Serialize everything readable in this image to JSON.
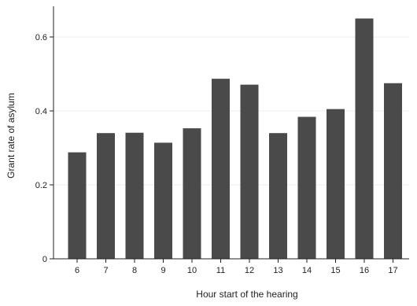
{
  "chart_data": {
    "type": "bar",
    "categories": [
      "6",
      "7",
      "8",
      "9",
      "10",
      "11",
      "12",
      "13",
      "14",
      "15",
      "16",
      "17"
    ],
    "values": [
      0.288,
      0.34,
      0.341,
      0.314,
      0.353,
      0.487,
      0.471,
      0.34,
      0.384,
      0.405,
      0.65,
      0.475
    ],
    "title": "",
    "xlabel": "Hour start of the hearing",
    "ylabel": "Grant rate of asylum",
    "ylim": [
      0,
      0.7
    ],
    "yticks": [
      0,
      0.2,
      0.4,
      0.6
    ],
    "ytick_labels": [
      "0",
      "0.2",
      "0.4",
      "0.6"
    ],
    "grid": true,
    "legend": false,
    "colors": {
      "bar": "#4a4a4a",
      "grid": "#e9eef2",
      "axis": "#222222",
      "background": "#ffffff"
    }
  }
}
